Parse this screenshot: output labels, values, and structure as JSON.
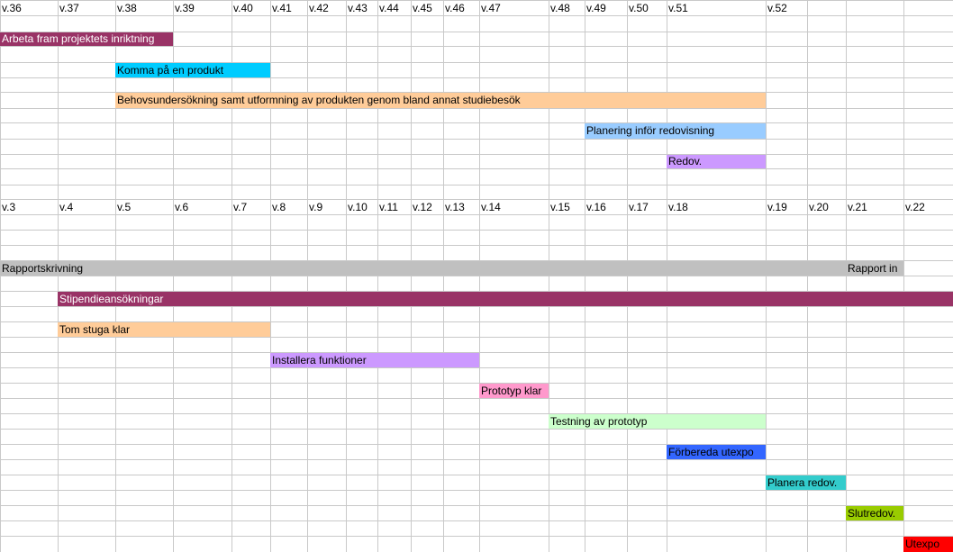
{
  "sheet": {
    "weeks_top": [
      "v.36",
      "v.37",
      "v.38",
      "v.39",
      "v.40",
      "v.41",
      "v.42",
      "v.43",
      "v.44",
      "v.45",
      "v.46",
      "v.47",
      "v.48",
      "v.49",
      "v.50",
      "v.51",
      "v.52"
    ],
    "weeks_bottom": [
      "v.3",
      "v.4",
      "v.5",
      "v.6",
      "v.7",
      "v.8",
      "v.9",
      "v.10",
      "v.11",
      "v.12",
      "v.13",
      "v.14",
      "v.15",
      "v.16",
      "v.17",
      "v.18",
      "v.19",
      "v.20",
      "v.21",
      "v.22"
    ],
    "tasks_top": [
      {
        "label": "Arbeta fram projektets inriktning",
        "color": "#993366",
        "text_color": "#ffffff"
      },
      {
        "label": "Komma på en produkt",
        "color": "#00ccff",
        "text_color": "#000000"
      },
      {
        "label": "Behovsundersökning samt utformning av produkten genom bland annat studiebesök",
        "color": "#ffcc99",
        "text_color": "#000000"
      },
      {
        "label": "Planering inför redovisning",
        "color": "#99ccff",
        "text_color": "#000000"
      },
      {
        "label": "Redov.",
        "color": "#cc99ff",
        "text_color": "#000000"
      }
    ],
    "tasks_bottom": [
      {
        "label": "Rapportskrivning",
        "color": "#c0c0c0",
        "text_color": "#000000"
      },
      {
        "label": "Rapport in",
        "color": "#c0c0c0",
        "text_color": "#000000"
      },
      {
        "label": "Stipendieansökningar",
        "color": "#993366",
        "text_color": "#ffffff"
      },
      {
        "label": "Tom stuga klar",
        "color": "#ffcc99",
        "text_color": "#000000"
      },
      {
        "label": "Installera funktioner",
        "color": "#cc99ff",
        "text_color": "#000000"
      },
      {
        "label": "Prototyp klar",
        "color": "#ff99cc",
        "text_color": "#000000"
      },
      {
        "label": "Testning av prototyp",
        "color": "#ccffcc",
        "text_color": "#000000"
      },
      {
        "label": "Förbereda utexpo",
        "color": "#3366ff",
        "text_color": "#000000"
      },
      {
        "label": "Planera redov.",
        "color": "#33cccc",
        "text_color": "#000000"
      },
      {
        "label": "Slutredov.",
        "color": "#99cc00",
        "text_color": "#000000"
      },
      {
        "label": "Utexpo",
        "color": "#ff0000",
        "text_color": "#000000"
      }
    ]
  }
}
